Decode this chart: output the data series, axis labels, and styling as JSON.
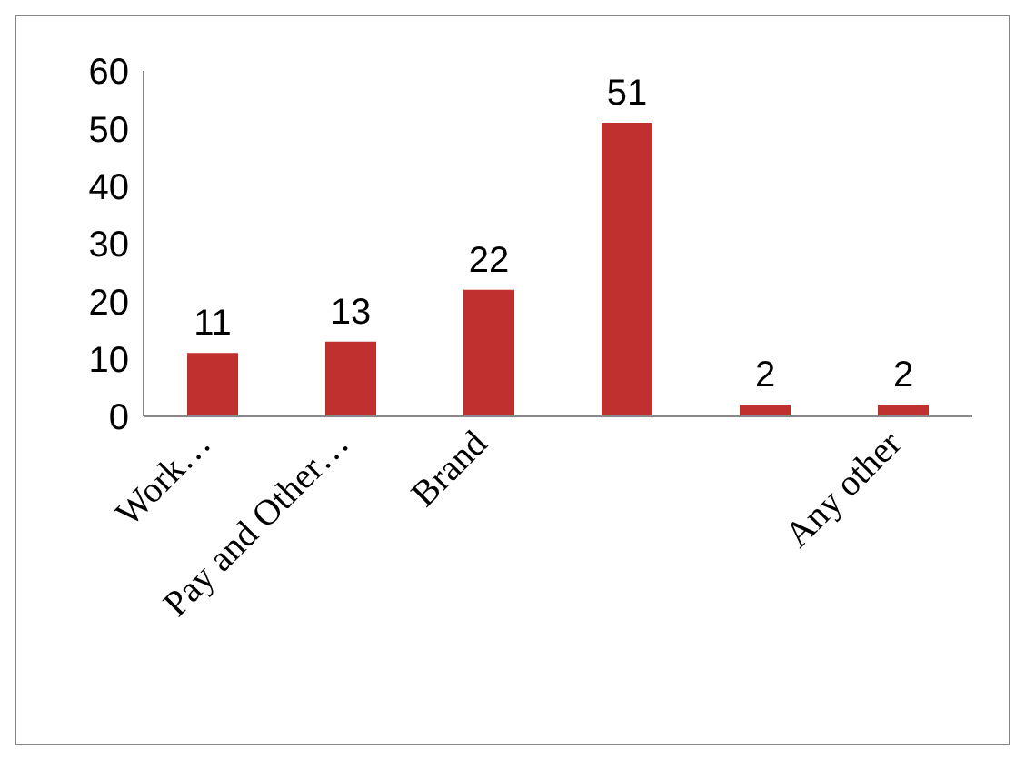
{
  "chart_data": {
    "type": "bar",
    "categories": [
      "Work…",
      "Pay and Other…",
      "Brand",
      null,
      null,
      "Any other"
    ],
    "values": [
      11,
      13,
      22,
      51,
      2,
      2
    ],
    "color": "#c0302f",
    "ylim": [
      0,
      60
    ],
    "yticks": [
      0,
      10,
      20,
      30,
      40,
      50,
      60
    ],
    "grid": false,
    "data_labels": true
  }
}
